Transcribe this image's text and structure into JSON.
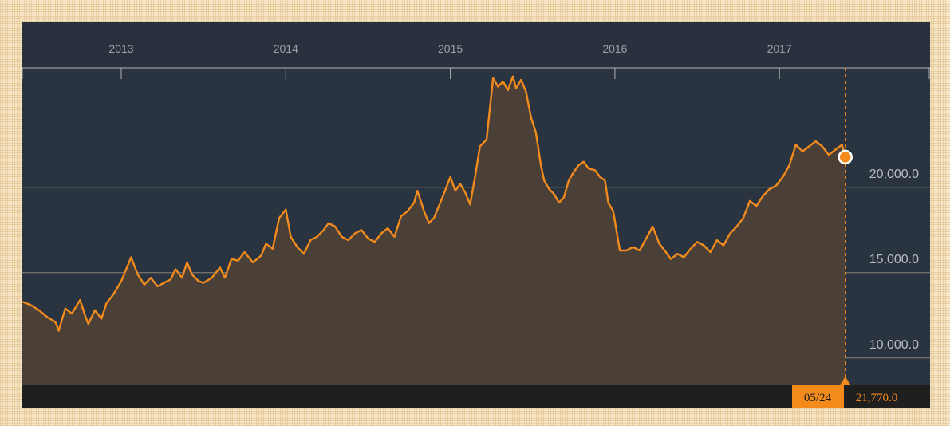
{
  "chart_data": {
    "type": "area",
    "x_axis_years": [
      "2013",
      "2014",
      "2015",
      "2016",
      "2017"
    ],
    "y_ticks": [
      "20,000.0",
      "15,000.0",
      "10,000.0"
    ],
    "ylim": [
      8400,
      27000
    ],
    "current": {
      "date_label": "05/24",
      "value_label": "21,770.0",
      "value": 21770
    },
    "series": [
      {
        "values": [
          [
            2012.4,
            13300
          ],
          [
            2012.45,
            13100
          ],
          [
            2012.5,
            12800
          ],
          [
            2012.55,
            12400
          ],
          [
            2012.6,
            12100
          ],
          [
            2012.62,
            11600
          ],
          [
            2012.66,
            12900
          ],
          [
            2012.7,
            12600
          ],
          [
            2012.75,
            13400
          ],
          [
            2012.78,
            12500
          ],
          [
            2012.8,
            12000
          ],
          [
            2012.84,
            12800
          ],
          [
            2012.88,
            12300
          ],
          [
            2012.91,
            13200
          ],
          [
            2012.95,
            13700
          ],
          [
            2013.0,
            14500
          ],
          [
            2013.03,
            15200
          ],
          [
            2013.06,
            15900
          ],
          [
            2013.1,
            14900
          ],
          [
            2013.14,
            14300
          ],
          [
            2013.18,
            14700
          ],
          [
            2013.22,
            14200
          ],
          [
            2013.26,
            14400
          ],
          [
            2013.3,
            14600
          ],
          [
            2013.33,
            15200
          ],
          [
            2013.37,
            14700
          ],
          [
            2013.4,
            15600
          ],
          [
            2013.43,
            14900
          ],
          [
            2013.47,
            14500
          ],
          [
            2013.5,
            14400
          ],
          [
            2013.55,
            14700
          ],
          [
            2013.6,
            15300
          ],
          [
            2013.63,
            14700
          ],
          [
            2013.67,
            15800
          ],
          [
            2013.71,
            15700
          ],
          [
            2013.75,
            16200
          ],
          [
            2013.8,
            15600
          ],
          [
            2013.85,
            16000
          ],
          [
            2013.88,
            16700
          ],
          [
            2013.92,
            16400
          ],
          [
            2013.96,
            18200
          ],
          [
            2014.0,
            18700
          ],
          [
            2014.03,
            17100
          ],
          [
            2014.07,
            16500
          ],
          [
            2014.11,
            16100
          ],
          [
            2014.15,
            16900
          ],
          [
            2014.19,
            17100
          ],
          [
            2014.23,
            17500
          ],
          [
            2014.26,
            17900
          ],
          [
            2014.3,
            17700
          ],
          [
            2014.34,
            17100
          ],
          [
            2014.38,
            16900
          ],
          [
            2014.42,
            17300
          ],
          [
            2014.46,
            17500
          ],
          [
            2014.5,
            17000
          ],
          [
            2014.54,
            16800
          ],
          [
            2014.58,
            17300
          ],
          [
            2014.62,
            17600
          ],
          [
            2014.66,
            17100
          ],
          [
            2014.7,
            18300
          ],
          [
            2014.74,
            18600
          ],
          [
            2014.78,
            19100
          ],
          [
            2014.8,
            19800
          ],
          [
            2014.84,
            18600
          ],
          [
            2014.87,
            17900
          ],
          [
            2014.9,
            18200
          ],
          [
            2014.93,
            18900
          ],
          [
            2014.96,
            19600
          ],
          [
            2015.0,
            20600
          ],
          [
            2015.03,
            19800
          ],
          [
            2015.06,
            20200
          ],
          [
            2015.09,
            19700
          ],
          [
            2015.12,
            19000
          ],
          [
            2015.15,
            20600
          ],
          [
            2015.18,
            22400
          ],
          [
            2015.22,
            22800
          ],
          [
            2015.26,
            26400
          ],
          [
            2015.29,
            25900
          ],
          [
            2015.32,
            26200
          ],
          [
            2015.35,
            25700
          ],
          [
            2015.38,
            26500
          ],
          [
            2015.4,
            25800
          ],
          [
            2015.43,
            26300
          ],
          [
            2015.46,
            25600
          ],
          [
            2015.49,
            24100
          ],
          [
            2015.52,
            23200
          ],
          [
            2015.55,
            21300
          ],
          [
            2015.57,
            20400
          ],
          [
            2015.6,
            19900
          ],
          [
            2015.63,
            19600
          ],
          [
            2015.66,
            19100
          ],
          [
            2015.69,
            19400
          ],
          [
            2015.72,
            20400
          ],
          [
            2015.75,
            20900
          ],
          [
            2015.78,
            21300
          ],
          [
            2015.81,
            21500
          ],
          [
            2015.84,
            21100
          ],
          [
            2015.88,
            21000
          ],
          [
            2015.91,
            20600
          ],
          [
            2015.94,
            20400
          ],
          [
            2015.96,
            19100
          ],
          [
            2015.99,
            18600
          ],
          [
            2016.03,
            16300
          ],
          [
            2016.07,
            16300
          ],
          [
            2016.11,
            16500
          ],
          [
            2016.15,
            16300
          ],
          [
            2016.19,
            17000
          ],
          [
            2016.23,
            17700
          ],
          [
            2016.27,
            16700
          ],
          [
            2016.31,
            16200
          ],
          [
            2016.34,
            15800
          ],
          [
            2016.38,
            16100
          ],
          [
            2016.42,
            15900
          ],
          [
            2016.46,
            16400
          ],
          [
            2016.5,
            16800
          ],
          [
            2016.54,
            16600
          ],
          [
            2016.58,
            16200
          ],
          [
            2016.62,
            16900
          ],
          [
            2016.66,
            16600
          ],
          [
            2016.7,
            17300
          ],
          [
            2016.74,
            17700
          ],
          [
            2016.78,
            18200
          ],
          [
            2016.82,
            19200
          ],
          [
            2016.86,
            18900
          ],
          [
            2016.9,
            19500
          ],
          [
            2016.94,
            19900
          ],
          [
            2016.98,
            20100
          ],
          [
            2017.02,
            20600
          ],
          [
            2017.06,
            21300
          ],
          [
            2017.1,
            22500
          ],
          [
            2017.14,
            22100
          ],
          [
            2017.18,
            22400
          ],
          [
            2017.22,
            22700
          ],
          [
            2017.26,
            22400
          ],
          [
            2017.3,
            21900
          ],
          [
            2017.34,
            22200
          ],
          [
            2017.38,
            22500
          ],
          [
            2017.4,
            21770
          ]
        ]
      }
    ],
    "colors": {
      "background": "#2a3340",
      "line": "#f28b1c",
      "area": "#4a4038",
      "grid": "#8b8578",
      "footer": "#1f1f1f"
    }
  }
}
